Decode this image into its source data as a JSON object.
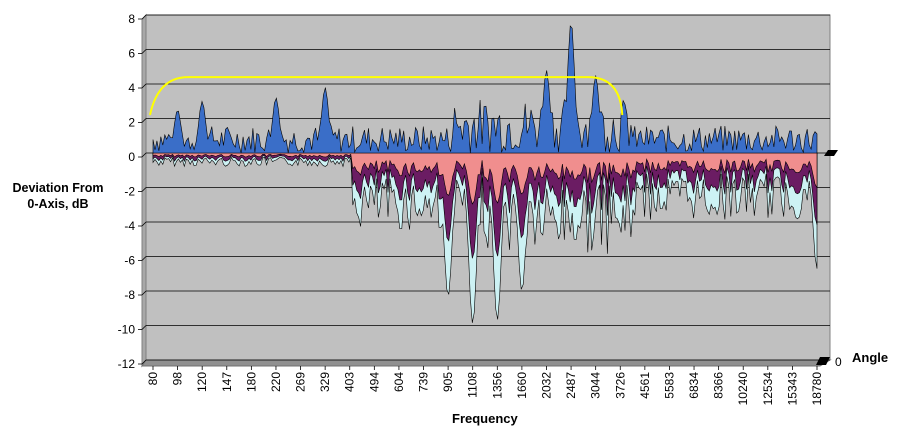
{
  "chart_data": {
    "type": "surface-3d",
    "title": "",
    "ylabel_lines": [
      "Deviation From",
      "0-Axis, dB"
    ],
    "xlabel": "Frequency",
    "zlabel": "Angle",
    "z_tick": "0",
    "ylim": [
      -12,
      8
    ],
    "y_ticks": [
      8,
      6,
      4,
      2,
      0,
      -2,
      -4,
      -6,
      -8,
      -10,
      -12
    ],
    "x_ticks": [
      "80",
      "98",
      "120",
      "147",
      "180",
      "220",
      "269",
      "329",
      "403",
      "494",
      "604",
      "739",
      "905",
      "1108",
      "1356",
      "1660",
      "2032",
      "2487",
      "3044",
      "3726",
      "4561",
      "5583",
      "6834",
      "8366",
      "10240",
      "12534",
      "15343",
      "18780"
    ],
    "series_colors": [
      "#3a6ec8",
      "#f08e8e",
      "#6b1c63",
      "#cdf2f4",
      "#ffff99"
    ],
    "reference_curve": {
      "description": "yellow window",
      "level_db": 4.4,
      "x_start": "80",
      "x_end": "3726"
    },
    "approx_peaks": [
      {
        "freq": "98",
        "db": 2.5
      },
      {
        "freq": "120",
        "db": 3.0
      },
      {
        "freq": "220",
        "db": 3.2
      },
      {
        "freq": "329",
        "db": 3.8
      },
      {
        "freq": "2032",
        "db": 4.8
      },
      {
        "freq": "2487",
        "db": 7.6
      },
      {
        "freq": "3044",
        "db": 4.5
      }
    ],
    "approx_troughs": [
      {
        "freq": "905",
        "db": -8.3
      },
      {
        "freq": "1108",
        "db": -9.9
      },
      {
        "freq": "1356",
        "db": -9.7
      },
      {
        "freq": "1660",
        "db": -8.0
      },
      {
        "freq": "18780",
        "db": -6.7
      }
    ]
  }
}
